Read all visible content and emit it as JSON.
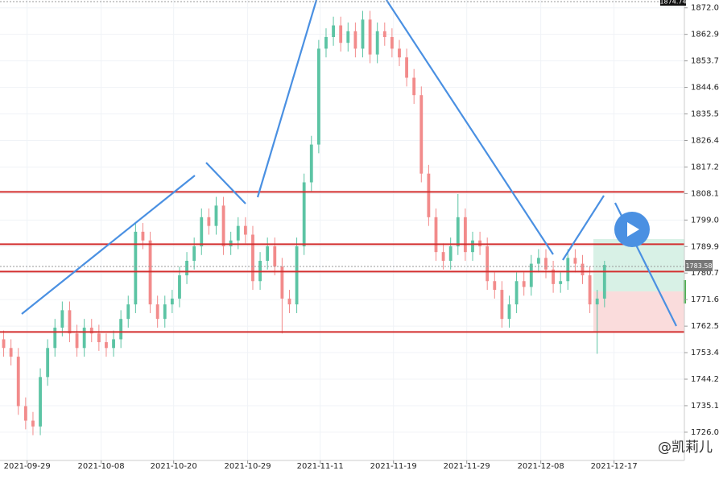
{
  "chart_data": {
    "type": "candlestick",
    "up_color": "#5cc4a4",
    "down_color": "#f28b8b",
    "xlim": [
      -0.5,
      92.9
    ],
    "xticks": [
      {
        "value": 3.2,
        "label": "2021-09-29"
      },
      {
        "value": 13.3,
        "label": "2021-10-08"
      },
      {
        "value": 23.2,
        "label": "2021-10-20"
      },
      {
        "value": 33.3,
        "label": "2021-10-29"
      },
      {
        "value": 43.2,
        "label": "2021-11-11"
      },
      {
        "value": 53.2,
        "label": "2021-11-19"
      },
      {
        "value": 63.2,
        "label": "2021-11-29"
      },
      {
        "value": 73.3,
        "label": "2021-12-08"
      },
      {
        "value": 83.3,
        "label": "2021-12-17"
      }
    ],
    "ylim": [
      1716.3,
      1874.74
    ],
    "yticks": [
      1872.04,
      1862.92,
      1853.79,
      1844.66,
      1835.54,
      1826.41,
      1817.28,
      1808.16,
      1799.03,
      {
        "value": 1789.9,
        "label": "1789.90"
      },
      1780.78,
      1771.65,
      1762.52,
      {
        "value": 1753.4,
        "label": "1753.40"
      },
      1744.27,
      1735.15,
      1726.02
    ],
    "levels": [
      1808.7,
      1790.7,
      1781.3,
      1760.5
    ],
    "open": [
      1758,
      1755,
      1752,
      1735,
      1730,
      1728,
      1745,
      1755,
      1762,
      1768,
      1760,
      1755,
      1762,
      1760,
      1757,
      1755,
      1758,
      1765,
      1770,
      1795,
      1792,
      1770,
      1765,
      1770,
      1772,
      1780,
      1785,
      1790,
      1800,
      1797,
      1804,
      1790,
      1792,
      1797,
      1794,
      1778,
      1785,
      1790,
      1783,
      1772,
      1770,
      1790,
      1812,
      1825,
      1858,
      1862,
      1866,
      1860,
      1864,
      1858,
      1868,
      1856,
      1864,
      1862,
      1858,
      1855,
      1848,
      1842,
      1815,
      1800,
      1788,
      1785,
      1790,
      1800,
      1788,
      1792,
      1790,
      1778,
      1775,
      1765,
      1770,
      1778,
      1776,
      1784,
      1786,
      1782,
      1777,
      1778,
      1786,
      1784,
      1780,
      1770,
      1772
    ],
    "high": [
      1761,
      1758,
      1755,
      1738,
      1733,
      1748,
      1758,
      1765,
      1771,
      1771,
      1763,
      1765,
      1765,
      1763,
      1760,
      1761,
      1768,
      1773,
      1798,
      1798,
      1795,
      1773,
      1773,
      1775,
      1783,
      1788,
      1793,
      1803,
      1803,
      1807,
      1807,
      1795,
      1800,
      1800,
      1797,
      1788,
      1793,
      1793,
      1786,
      1775,
      1793,
      1815,
      1828,
      1861,
      1865,
      1869,
      1869,
      1867,
      1867,
      1871,
      1871,
      1867,
      1867,
      1865,
      1861,
      1858,
      1851,
      1845,
      1818,
      1803,
      1791,
      1793,
      1808,
      1803,
      1795,
      1795,
      1793,
      1781,
      1778,
      1773,
      1781,
      1781,
      1787,
      1789,
      1789,
      1785,
      1781,
      1789,
      1789,
      1787,
      1783,
      1775,
      1785
    ],
    "low": [
      1752,
      1749,
      1732,
      1727,
      1725,
      1725,
      1742,
      1752,
      1759,
      1757,
      1752,
      1752,
      1757,
      1754,
      1752,
      1752,
      1755,
      1762,
      1767,
      1789,
      1767,
      1762,
      1762,
      1767,
      1769,
      1777,
      1782,
      1787,
      1794,
      1794,
      1787,
      1787,
      1789,
      1791,
      1775,
      1775,
      1782,
      1780,
      1760,
      1767,
      1767,
      1787,
      1809,
      1822,
      1855,
      1859,
      1857,
      1857,
      1855,
      1855,
      1853,
      1853,
      1859,
      1855,
      1852,
      1845,
      1839,
      1812,
      1797,
      1785,
      1782,
      1782,
      1787,
      1785,
      1785,
      1787,
      1775,
      1772,
      1762,
      1762,
      1767,
      1773,
      1773,
      1781,
      1779,
      1774,
      1774,
      1775,
      1781,
      1777,
      1767,
      1753,
      1769
    ],
    "close": [
      1755,
      1752,
      1735,
      1730,
      1728,
      1745,
      1755,
      1762,
      1768,
      1760,
      1755,
      1762,
      1760,
      1757,
      1755,
      1758,
      1765,
      1770,
      1795,
      1792,
      1770,
      1765,
      1770,
      1772,
      1780,
      1785,
      1790,
      1800,
      1797,
      1804,
      1790,
      1792,
      1797,
      1794,
      1778,
      1785,
      1790,
      1783,
      1772,
      1770,
      1790,
      1812,
      1825,
      1858,
      1862,
      1866,
      1860,
      1864,
      1858,
      1868,
      1856,
      1864,
      1862,
      1858,
      1855,
      1848,
      1842,
      1815,
      1800,
      1788,
      1785,
      1790,
      1800,
      1788,
      1792,
      1790,
      1778,
      1775,
      1765,
      1770,
      1778,
      1776,
      1784,
      1786,
      1782,
      1777,
      1778,
      1786,
      1784,
      1780,
      1770,
      1772,
      1783.58
    ],
    "watermark": "@凯莉儿"
  }
}
